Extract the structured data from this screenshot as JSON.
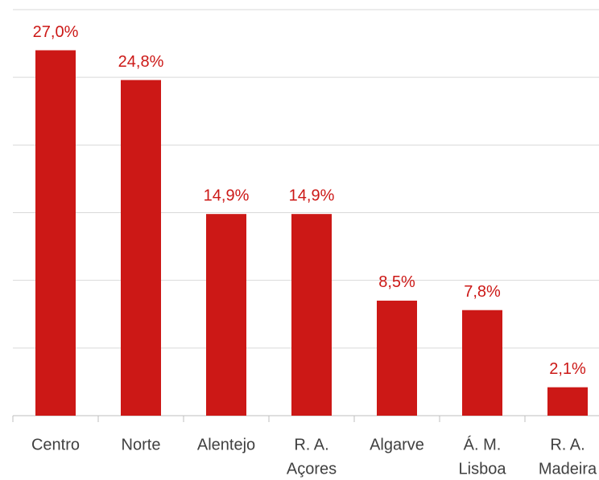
{
  "chart_data": {
    "type": "bar",
    "categories": [
      [
        "Centro"
      ],
      [
        "Norte"
      ],
      [
        "Alentejo"
      ],
      [
        "R. A.",
        "Açores"
      ],
      [
        "Algarve"
      ],
      [
        "Á. M.",
        "Lisboa"
      ],
      [
        "R. A.",
        "Madeira"
      ]
    ],
    "values": [
      27.0,
      24.8,
      14.9,
      14.9,
      8.5,
      7.8,
      2.1
    ],
    "value_labels": [
      "27,0%",
      "24,8%",
      "14,9%",
      "14,9%",
      "8,5%",
      "7,8%",
      "2,1%"
    ],
    "color": "#cc1816",
    "ylim": [
      0,
      30
    ],
    "yticks": [
      0,
      5,
      10,
      15,
      20,
      25,
      30
    ],
    "grid": true
  }
}
